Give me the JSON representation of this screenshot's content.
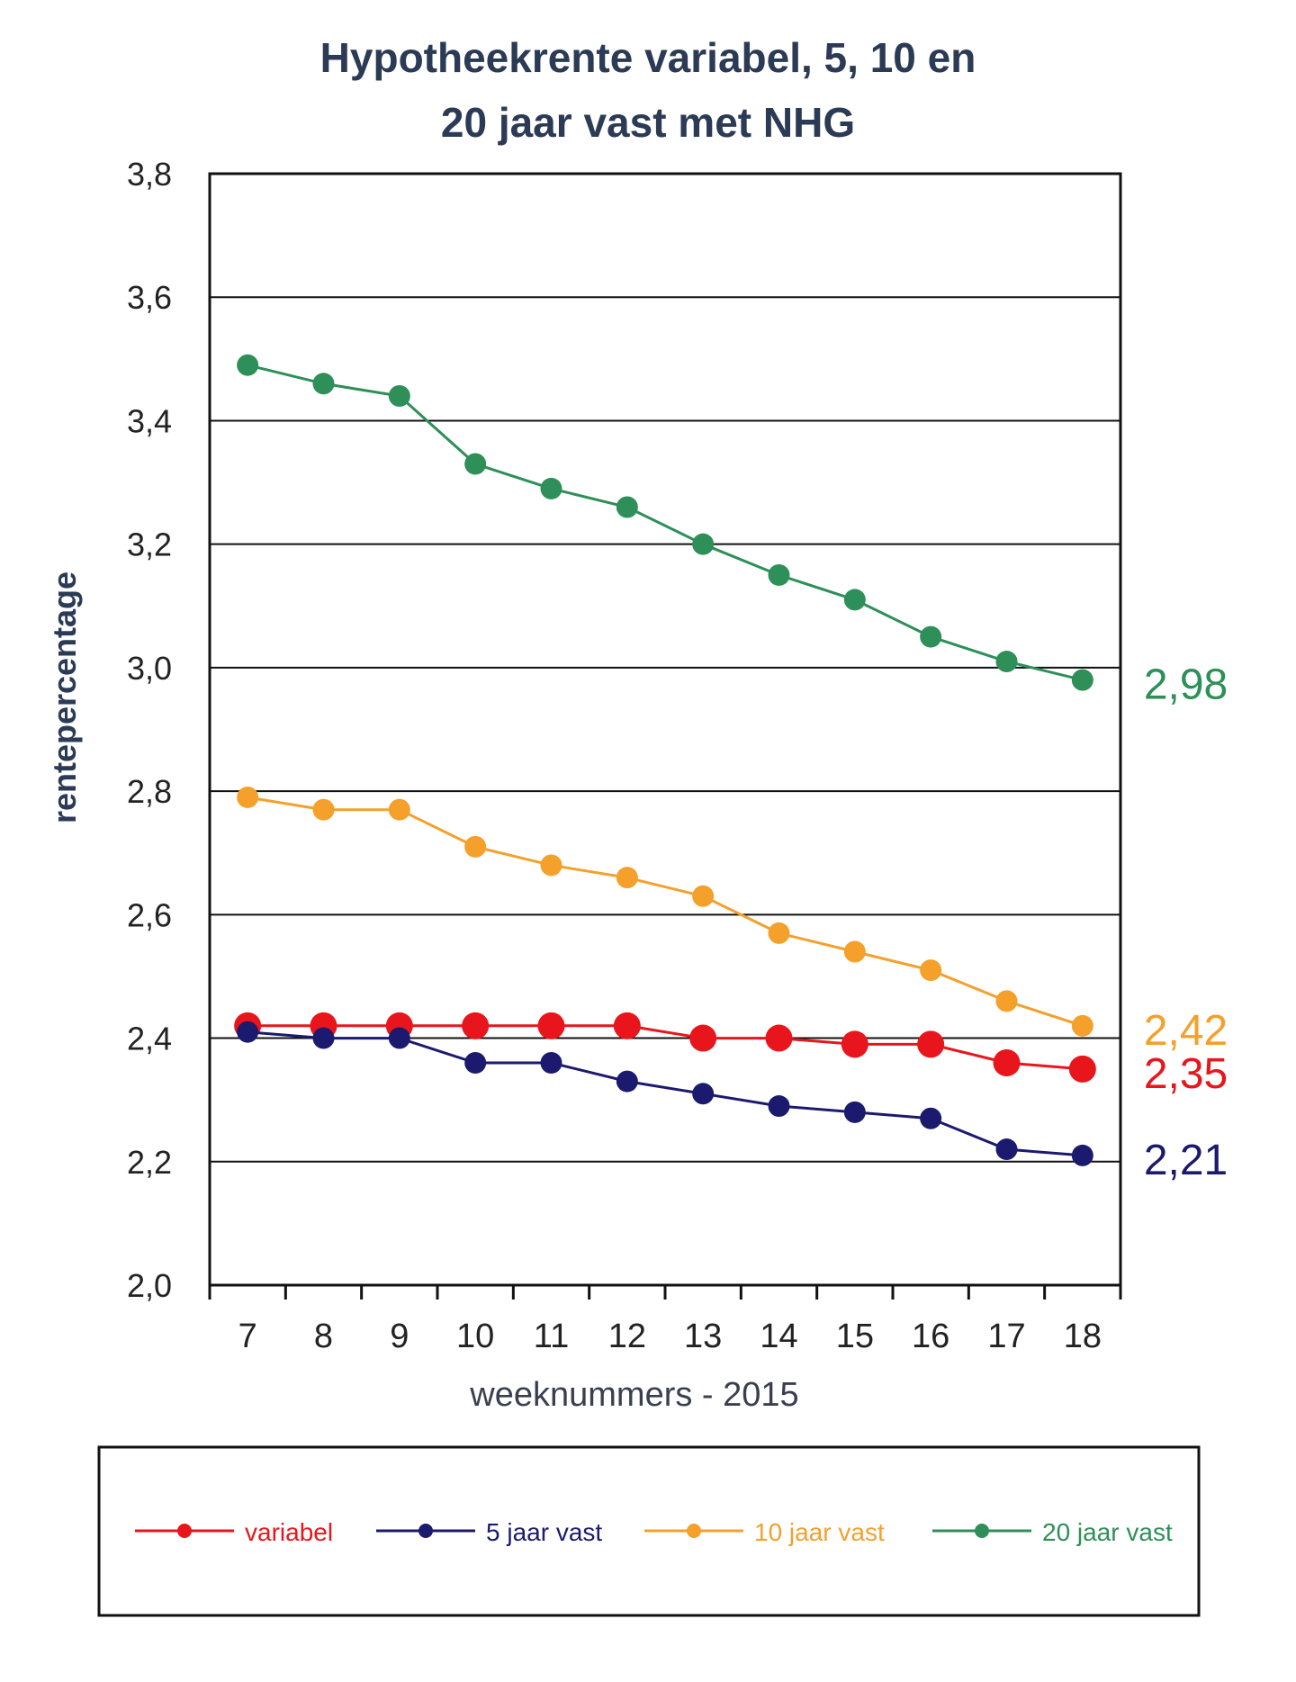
{
  "chart_data": {
    "type": "line",
    "title_lines": [
      "Hypotheekrente variabel, 5, 10 en",
      "20 jaar vast met NHG"
    ],
    "xlabel": "weeknummers - 2015",
    "ylabel": "rentepercentage",
    "x": [
      7,
      8,
      9,
      10,
      11,
      12,
      13,
      14,
      15,
      16,
      17,
      18
    ],
    "x_tick_labels": [
      "7",
      "8",
      "9",
      "10",
      "11",
      "12",
      "13",
      "14",
      "15",
      "16",
      "17",
      "18"
    ],
    "ylim": [
      2.0,
      3.8
    ],
    "y_ticks": [
      2.0,
      2.2,
      2.4,
      2.6,
      2.8,
      3.0,
      3.2,
      3.4,
      3.6,
      3.8
    ],
    "y_tick_labels": [
      "2,0",
      "2,2",
      "2,4",
      "2,6",
      "2,8",
      "3,0",
      "3,2",
      "3,4",
      "3,6",
      "3,8"
    ],
    "grid": true,
    "legend_position": "bottom",
    "series": [
      {
        "name": "variabel",
        "color": "#e8161c",
        "values": [
          2.42,
          2.42,
          2.42,
          2.42,
          2.42,
          2.42,
          2.4,
          2.4,
          2.39,
          2.39,
          2.36,
          2.35
        ],
        "end_label": "2,35"
      },
      {
        "name": "5 jaar vast",
        "color": "#1b1a6e",
        "values": [
          2.41,
          2.4,
          2.4,
          2.36,
          2.36,
          2.33,
          2.31,
          2.29,
          2.28,
          2.27,
          2.22,
          2.21
        ],
        "end_label": "2,21"
      },
      {
        "name": "10 jaar vast",
        "color": "#f4a02b",
        "values": [
          2.79,
          2.77,
          2.77,
          2.71,
          2.68,
          2.66,
          2.63,
          2.57,
          2.54,
          2.51,
          2.46,
          2.42
        ],
        "end_label": "2,42"
      },
      {
        "name": "20 jaar vast",
        "color": "#2e8f58",
        "values": [
          3.49,
          3.46,
          3.44,
          3.33,
          3.29,
          3.26,
          3.2,
          3.15,
          3.11,
          3.05,
          3.01,
          2.98
        ],
        "end_label": "2,98"
      }
    ]
  }
}
